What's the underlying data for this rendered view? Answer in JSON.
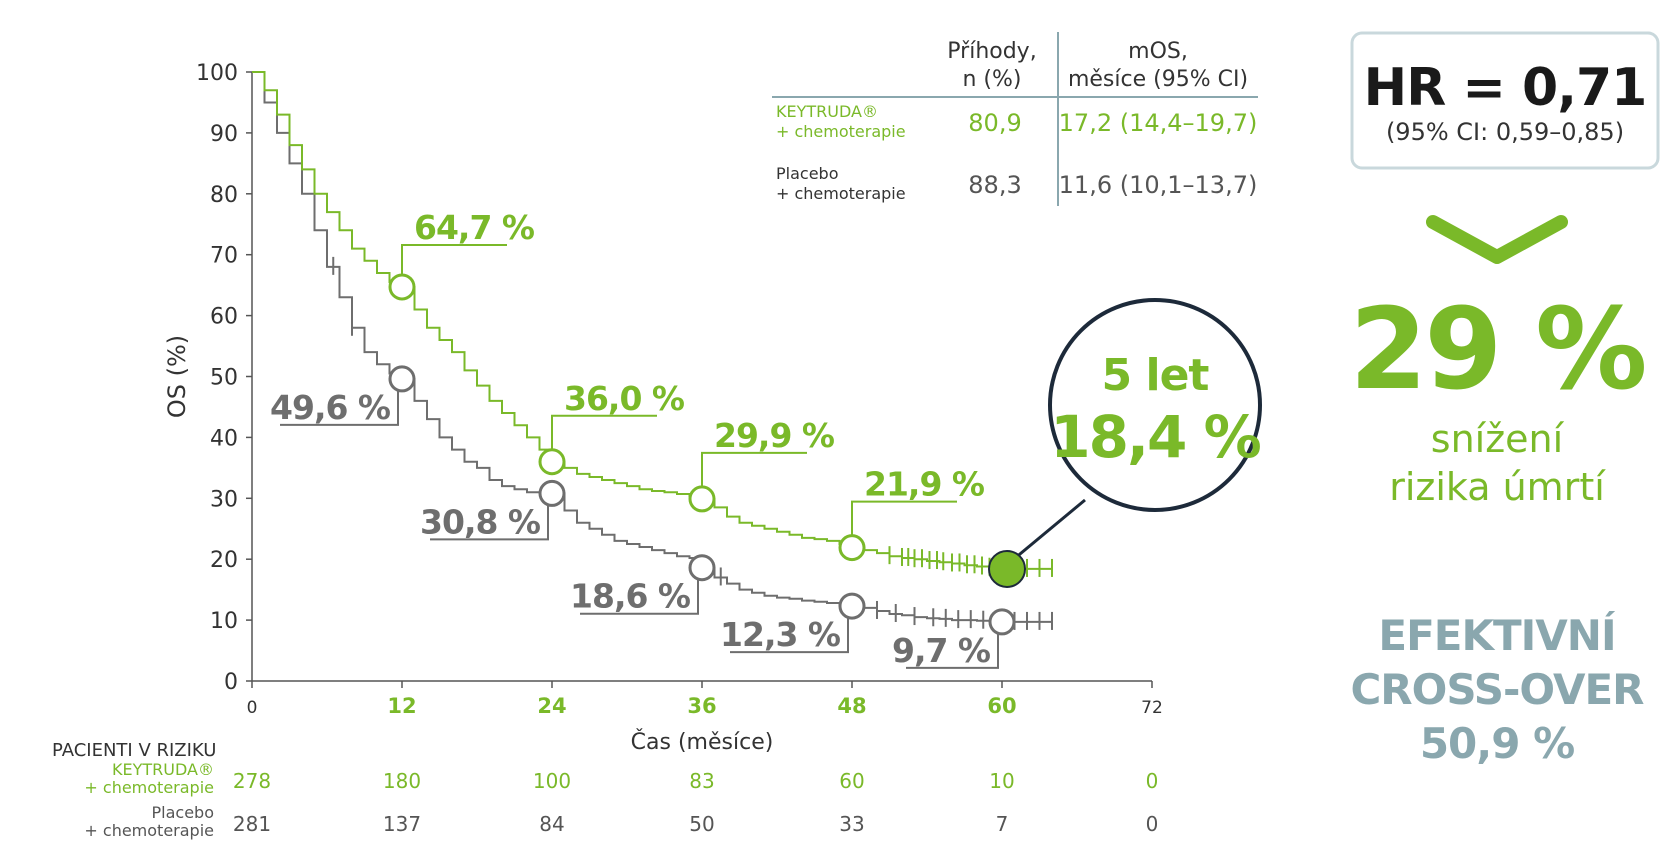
{
  "colors": {
    "keytruda": "#7ab929",
    "placebo": "#6e6e6e",
    "dark": "#2c2c2c",
    "axis": "#555555",
    "teal": "#8aa7ae",
    "navy": "#1d2a3a",
    "box_border": "#c9d8dc"
  },
  "chart_data": {
    "type": "line",
    "title": "",
    "xlabel": "Čas (měsíce)",
    "ylabel": "OS (%)",
    "xlim": [
      0,
      72
    ],
    "ylim": [
      0,
      100
    ],
    "x_ticks": [
      "0",
      "12",
      "24",
      "36",
      "48",
      "60",
      "72"
    ],
    "x_ticks_highlight": [
      false,
      true,
      true,
      true,
      true,
      true,
      false
    ],
    "y_ticks": [
      "0",
      "10",
      "20",
      "30",
      "40",
      "50",
      "60",
      "70",
      "80",
      "90",
      "100"
    ],
    "series": [
      {
        "name": "KEYTRUDA® + chemoterapie",
        "key": "keytruda",
        "x": [
          0,
          1,
          2,
          3,
          4,
          5,
          6,
          7,
          8,
          9,
          10,
          11,
          12,
          13,
          14,
          15,
          16,
          17,
          18,
          19,
          20,
          21,
          22,
          23,
          24,
          25,
          26,
          27,
          28,
          29,
          30,
          31,
          32,
          33,
          34,
          35,
          36,
          37,
          38,
          39,
          40,
          41,
          42,
          43,
          44,
          45,
          46,
          47,
          48,
          49,
          50,
          51,
          52,
          53,
          54,
          55,
          56,
          57,
          58,
          59,
          60,
          61,
          62,
          63,
          64
        ],
        "values": [
          100,
          97,
          93,
          88,
          84,
          80,
          77,
          74,
          71,
          69,
          67,
          65.5,
          64.7,
          61,
          58,
          56,
          54,
          51,
          48.5,
          46,
          44,
          42,
          40,
          38,
          36.0,
          35,
          34,
          33.5,
          33,
          32.5,
          32,
          31.5,
          31.2,
          31,
          30.7,
          30.3,
          29.9,
          28.5,
          27,
          26,
          25.5,
          25,
          24.5,
          24,
          23.5,
          23.3,
          23,
          22.5,
          21.9,
          21.5,
          21,
          20.5,
          20.2,
          20,
          19.7,
          19.5,
          19.3,
          19,
          18.8,
          18.6,
          18.4,
          18.4,
          18.4,
          18.4,
          18.4
        ]
      },
      {
        "name": "Placebo + chemoterapie",
        "key": "placebo",
        "x": [
          0,
          1,
          2,
          3,
          4,
          5,
          6,
          7,
          8,
          9,
          10,
          11,
          12,
          13,
          14,
          15,
          16,
          17,
          18,
          19,
          20,
          21,
          22,
          23,
          24,
          25,
          26,
          27,
          28,
          29,
          30,
          31,
          32,
          33,
          34,
          35,
          36,
          37,
          38,
          39,
          40,
          41,
          42,
          43,
          44,
          45,
          46,
          47,
          48,
          49,
          50,
          51,
          52,
          53,
          54,
          55,
          56,
          57,
          58,
          59,
          60,
          61,
          62,
          63,
          64
        ],
        "values": [
          100,
          95,
          90,
          85,
          80,
          74,
          68,
          63,
          58,
          54,
          52,
          50.5,
          49.6,
          46,
          43,
          40,
          38,
          36,
          35,
          33,
          32,
          31.5,
          31,
          31,
          30.8,
          28,
          26,
          25,
          24,
          23,
          22.5,
          22,
          21.5,
          21,
          20.5,
          20.2,
          18.6,
          17,
          16,
          15,
          14.5,
          14,
          13.7,
          13.5,
          13.2,
          13,
          12.8,
          12.5,
          12.3,
          12,
          11.5,
          11,
          10.8,
          10.5,
          10.3,
          10.2,
          10,
          10,
          9.9,
          9.8,
          9.7,
          9.7,
          9.7,
          9.7,
          9.7
        ]
      }
    ],
    "annotations": {
      "keytruda": [
        {
          "x": 12,
          "y": 64.7,
          "label": "64,7 %"
        },
        {
          "x": 24,
          "y": 36.0,
          "label": "36,0 %"
        },
        {
          "x": 36,
          "y": 29.9,
          "label": "29,9 %"
        },
        {
          "x": 48,
          "y": 21.9,
          "label": "21,9 %"
        }
      ],
      "placebo": [
        {
          "x": 12,
          "y": 49.6,
          "label": "49,6 %"
        },
        {
          "x": 24,
          "y": 30.8,
          "label": "30,8 %"
        },
        {
          "x": 36,
          "y": 18.6,
          "label": "18,6 %"
        },
        {
          "x": 48,
          "y": 12.3,
          "label": "12,3 %"
        },
        {
          "x": 60,
          "y": 9.7,
          "label": "9,7 %"
        }
      ],
      "highlight": {
        "x": 60,
        "y": 18.4
      }
    },
    "censor_keytruda_x": [
      51,
      52,
      52.5,
      53,
      53.6,
      54.2,
      54.8,
      55.3,
      56,
      56.6,
      57.2,
      57.8,
      58.4,
      59,
      59.6,
      61,
      62,
      63,
      64
    ],
    "censor_placebo_x": [
      6.5,
      8,
      37.5,
      50,
      51.5,
      53,
      54.5,
      55.5,
      56.5,
      57.5,
      58.5,
      59.5,
      61,
      62,
      63,
      64
    ]
  },
  "legend_table": {
    "header_events": "Příhody,\nn (%)",
    "header_events_lines": [
      "Příhody,",
      "n (%)"
    ],
    "header_mos_lines": [
      "mOS,",
      "měsíce (95% CI)"
    ],
    "rows": [
      {
        "name_lines": [
          "KEYTRUDA®",
          "+ chemoterapie"
        ],
        "events": "80,9",
        "mos": "17,2 (14,4–19,7)",
        "key": "keytruda"
      },
      {
        "name_lines": [
          "Placebo",
          "+ chemoterapie"
        ],
        "events": "88,3",
        "mos": "11,6 (10,1–13,7)",
        "key": "placebo"
      }
    ]
  },
  "callout": {
    "line1": "5 let",
    "line2": "18,4 %"
  },
  "hr_box": {
    "title": "HR = 0,71",
    "ci": "(95% CI: 0,59–0,85)"
  },
  "reduction": {
    "value": "29 %",
    "line1": "snížení",
    "line2": "rizika úmrtí"
  },
  "crossover": {
    "line1": "EFEKTIVNÍ",
    "line2": "CROSS-OVER",
    "line3": "50,9 %"
  },
  "risk_table": {
    "title": "PACIENTI V RIZIKU",
    "rows": [
      {
        "key": "keytruda",
        "name_lines": [
          "KEYTRUDA®",
          "+ chemoterapie"
        ],
        "values": [
          "278",
          "180",
          "100",
          "83",
          "60",
          "10",
          "0"
        ]
      },
      {
        "key": "placebo",
        "name_lines": [
          "Placebo",
          "+ chemoterapie"
        ],
        "values": [
          "281",
          "137",
          "84",
          "50",
          "33",
          "7",
          "0"
        ]
      }
    ]
  }
}
